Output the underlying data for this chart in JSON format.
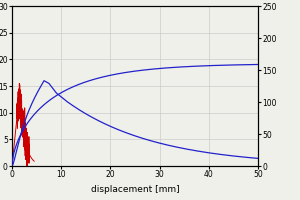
{
  "xlabel": "displacement [mm]",
  "xlim": [
    0,
    50
  ],
  "ylim_left": [
    0,
    30
  ],
  "ylim_right": [
    0,
    250
  ],
  "yticks_left": [
    0,
    5,
    10,
    15,
    20,
    25,
    30
  ],
  "yticks_right": [
    0,
    50,
    100,
    150,
    200,
    250
  ],
  "xticks": [
    0,
    10,
    20,
    30,
    40,
    50
  ],
  "grid_color": "#cccccc",
  "background_color": "#f0f0eb",
  "red_color": "#cc0000",
  "blue_color": "#2222cc"
}
